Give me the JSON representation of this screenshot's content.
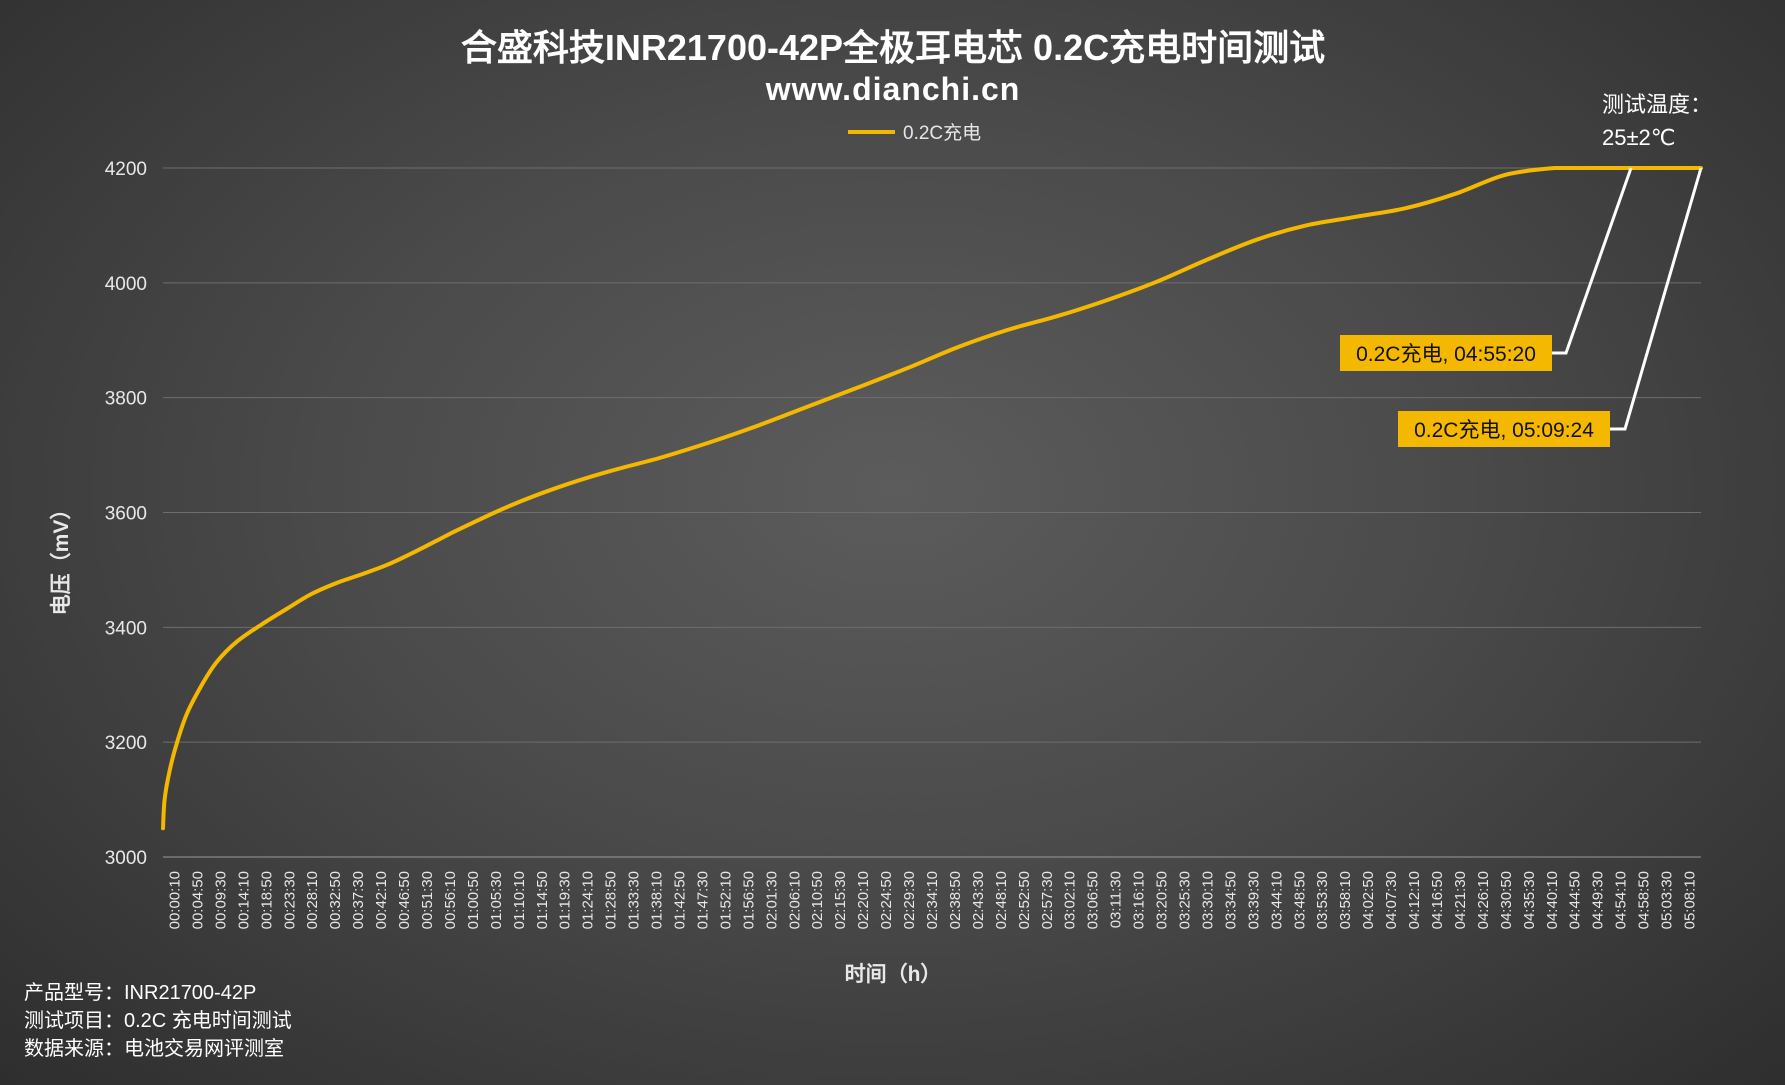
{
  "chart_data": {
    "type": "line",
    "title": "合盛科技INR21700-42P全极耳电芯 0.2C充电时间测试",
    "subtitle": "www.dianchi.cn",
    "xlabel": "时间（h）",
    "ylabel": "电压（mV）",
    "ylim": [
      3000,
      4200
    ],
    "yticks": [
      3000,
      3200,
      3400,
      3600,
      3800,
      4000,
      4200
    ],
    "grid": true,
    "legend_position": "top-center",
    "series_color": "#f5b800",
    "x_categories": [
      "00:00:10",
      "00:04:50",
      "00:09:30",
      "00:14:10",
      "00:18:50",
      "00:23:30",
      "00:28:10",
      "00:32:50",
      "00:37:30",
      "00:42:10",
      "00:46:50",
      "00:51:30",
      "00:56:10",
      "01:00:50",
      "01:05:30",
      "01:10:10",
      "01:14:50",
      "01:19:30",
      "01:24:10",
      "01:28:50",
      "01:33:30",
      "01:38:10",
      "01:42:50",
      "01:47:30",
      "01:52:10",
      "01:56:50",
      "02:01:30",
      "02:06:10",
      "02:10:50",
      "02:15:30",
      "02:20:10",
      "02:24:50",
      "02:29:30",
      "02:34:10",
      "02:38:50",
      "02:43:30",
      "02:48:10",
      "02:52:50",
      "02:57:30",
      "03:02:10",
      "03:06:50",
      "03:11:30",
      "03:16:10",
      "03:20:50",
      "03:25:30",
      "03:30:10",
      "03:34:50",
      "03:39:30",
      "03:44:10",
      "03:48:50",
      "03:53:30",
      "03:58:10",
      "04:02:50",
      "04:07:30",
      "04:12:10",
      "04:16:50",
      "04:21:30",
      "04:26:10",
      "04:30:50",
      "04:35:30",
      "04:40:10",
      "04:44:50",
      "04:49:30",
      "04:54:10",
      "04:58:50",
      "05:03:30",
      "05:08:10"
    ],
    "series": [
      {
        "name": "0.2C充电",
        "x_minutes": [
          0.17,
          0.5,
          1.5,
          3,
          5,
          8,
          11,
          15,
          20,
          25,
          30,
          35,
          40,
          45,
          50,
          55,
          60,
          70,
          80,
          90,
          100,
          110,
          120,
          130,
          140,
          150,
          160,
          170,
          180,
          190,
          200,
          210,
          220,
          230,
          240,
          250,
          260,
          270,
          280,
          285,
          290,
          295.33,
          300,
          305,
          309.4
        ],
        "values": [
          3050,
          3100,
          3150,
          3200,
          3250,
          3300,
          3340,
          3375,
          3405,
          3432,
          3458,
          3477,
          3492,
          3508,
          3528,
          3550,
          3572,
          3612,
          3645,
          3672,
          3695,
          3722,
          3752,
          3785,
          3818,
          3852,
          3888,
          3918,
          3942,
          3970,
          4002,
          4040,
          4075,
          4100,
          4115,
          4130,
          4155,
          4188,
          4200,
          4200,
          4200,
          4200,
          4200,
          4200,
          4200
        ]
      }
    ],
    "annotations": [
      {
        "text": "0.2C充电, 04:55:20",
        "x_minutes": 295.33,
        "y": 4200
      },
      {
        "text": "0.2C充电, 05:09:24",
        "x_minutes": 309.4,
        "y": 4200
      }
    ]
  },
  "notes": {
    "temp_label": "测试温度：",
    "temp_value": "25±2℃"
  },
  "footer": {
    "line1": "产品型号：INR21700-42P",
    "line2": "测试项目：0.2C 充电时间测试",
    "line3": "数据来源：电池交易网评测室"
  }
}
